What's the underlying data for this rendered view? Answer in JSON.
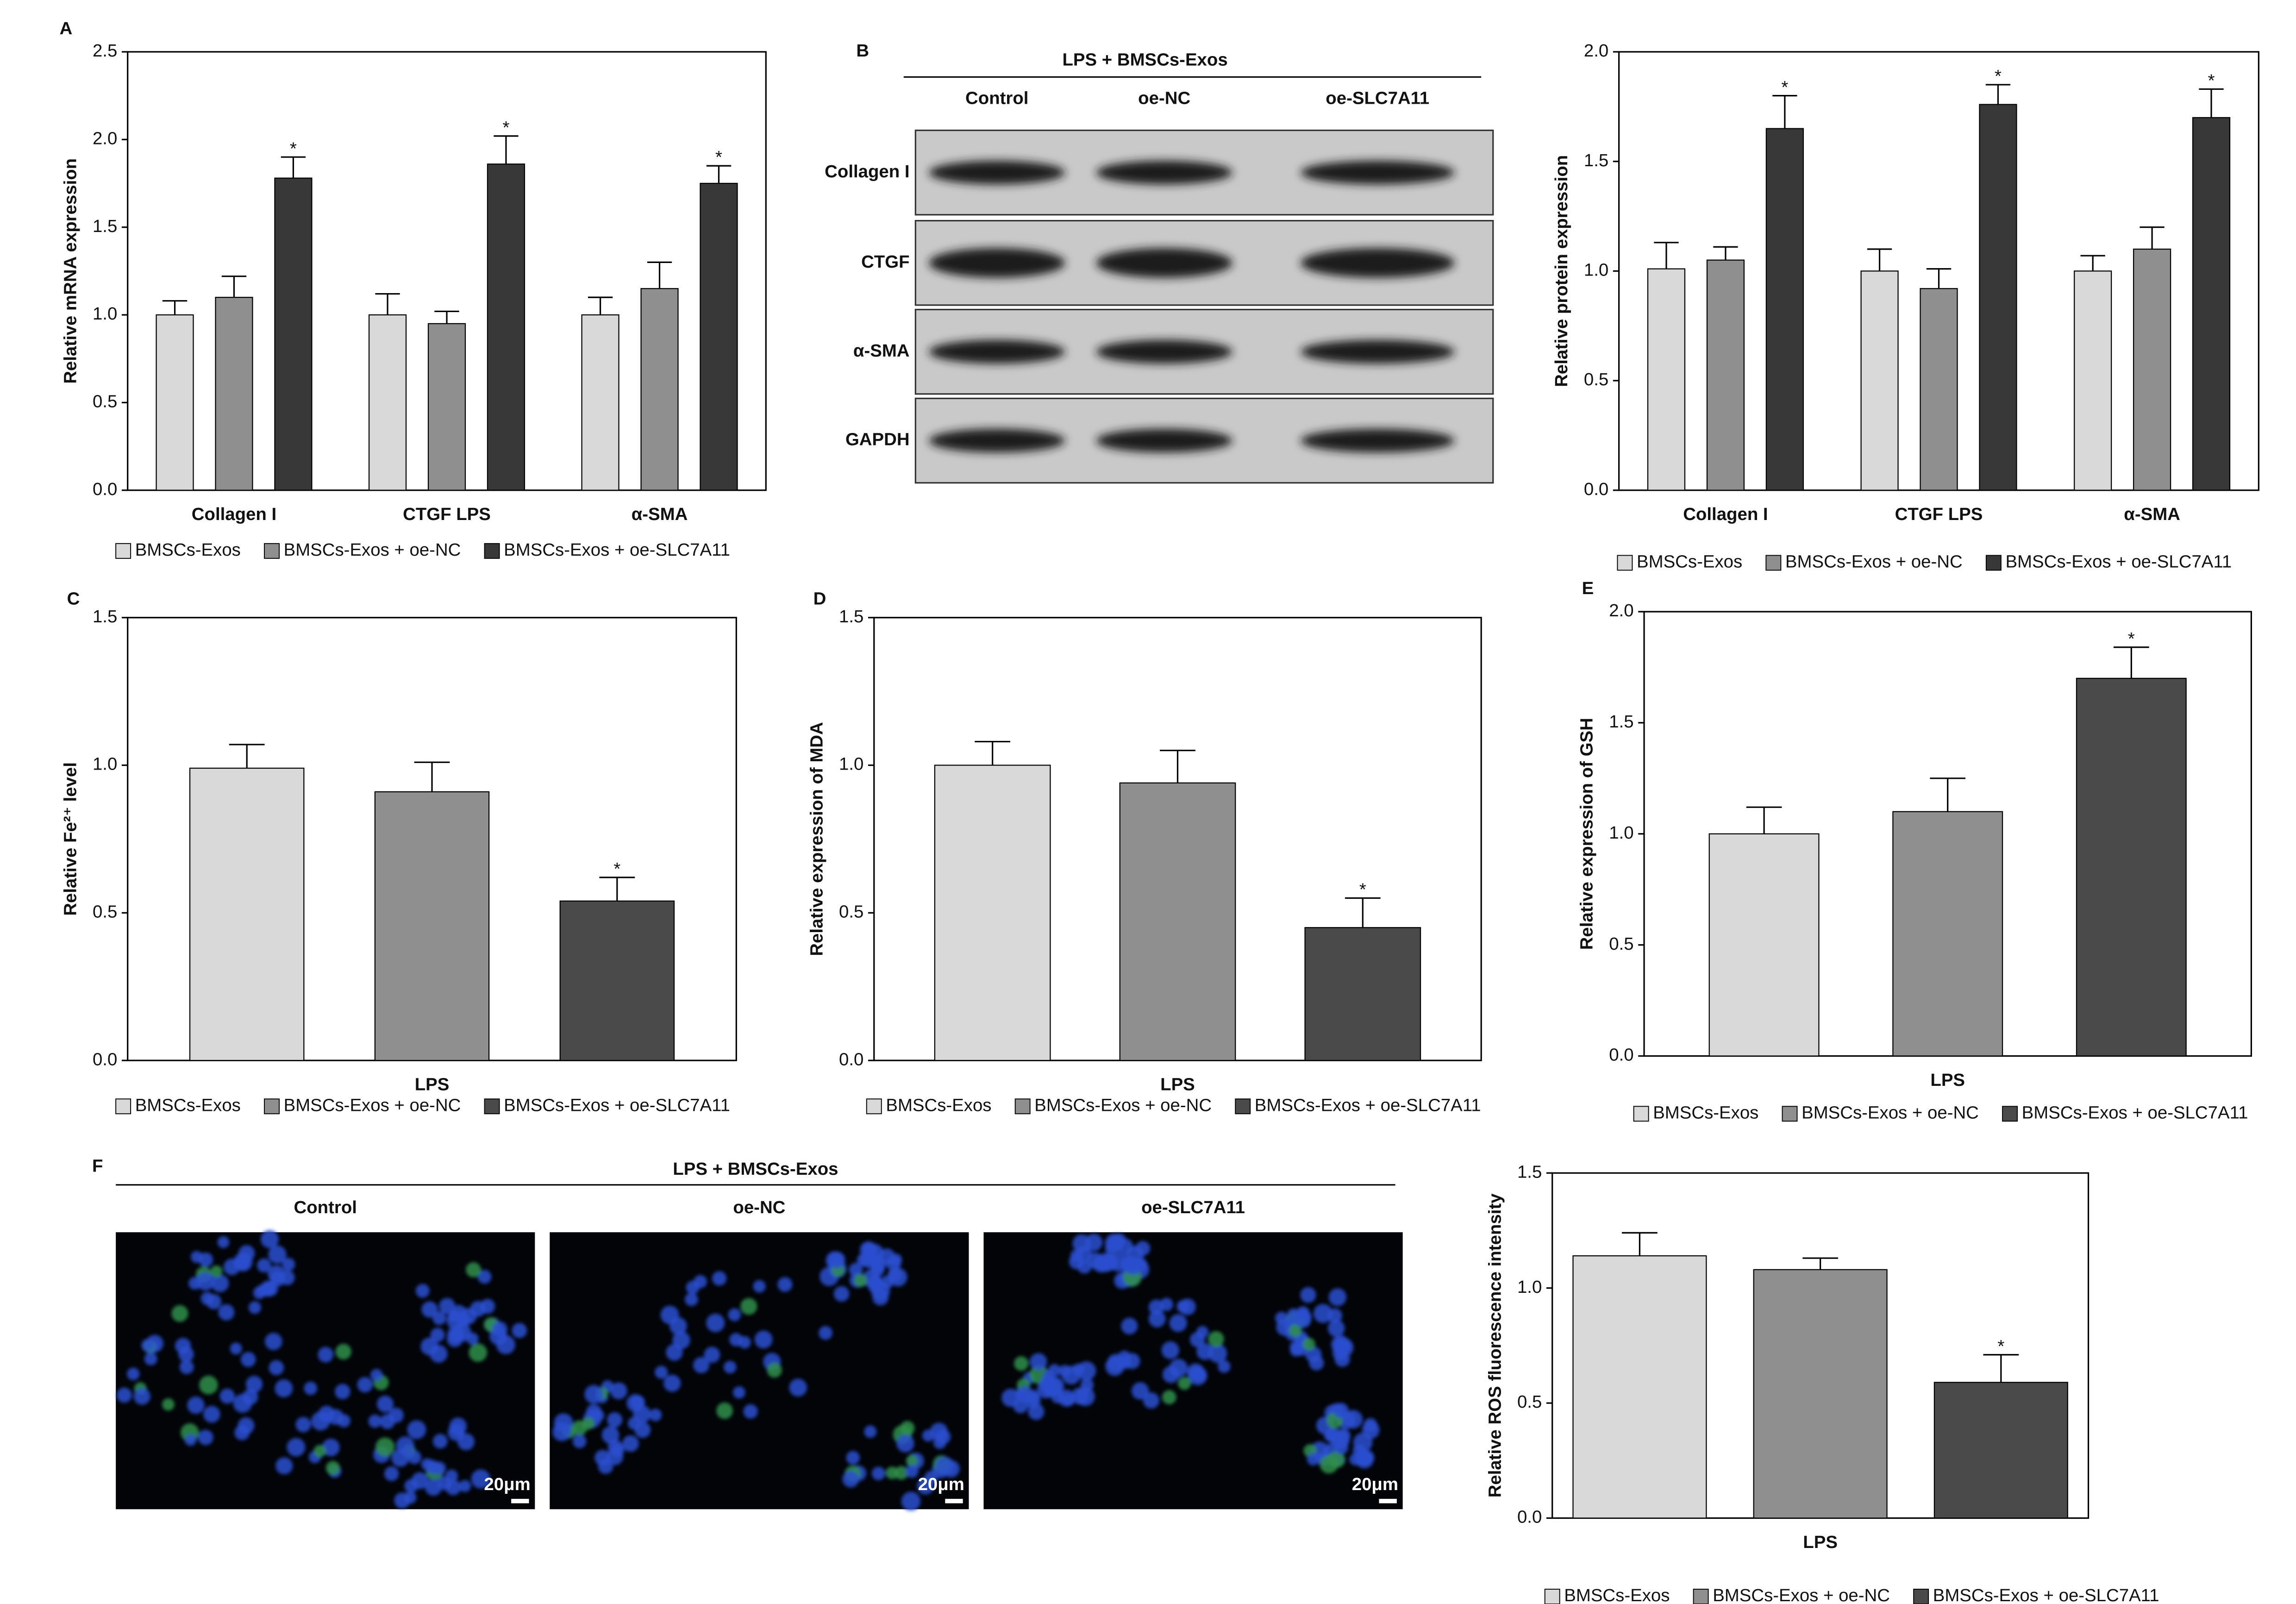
{
  "chart_data": [
    {
      "type": "bar",
      "panel": "A",
      "ylabel": "Relative mRNA expression",
      "categories": [
        "Collagen I",
        "CTGF LPS",
        "α-SMA"
      ],
      "series": [
        {
          "name": "BMSCs-Exos",
          "color": "#d9d9d9",
          "values": [
            1.0,
            1.0,
            1.0
          ],
          "errors": [
            0.08,
            0.12,
            0.1
          ]
        },
        {
          "name": "BMSCs-Exos + oe-NC",
          "color": "#8f8f8f",
          "values": [
            1.1,
            0.95,
            1.15
          ],
          "errors": [
            0.12,
            0.07,
            0.15
          ]
        },
        {
          "name": "BMSCs-Exos + oe-SLC7A11",
          "color": "#383838",
          "values": [
            1.78,
            1.86,
            1.75
          ],
          "errors": [
            0.12,
            0.16,
            0.1
          ],
          "annotations": [
            "*",
            "*",
            "*"
          ]
        }
      ],
      "ylim": [
        0,
        2.5
      ],
      "yticks": [
        {
          "value": 0,
          "label": "0.0"
        },
        0.5,
        {
          "value": 1,
          "label": "1.0"
        },
        1.5,
        {
          "value": 2,
          "label": "2.0"
        },
        2.5
      ]
    },
    {
      "type": "blot",
      "panel": "B",
      "header": "LPS + BMSCs-Exos",
      "columns": [
        "Control",
        "oe-NC",
        "oe-SLC7A11"
      ],
      "rows": [
        "Collagen I",
        "CTGF",
        "α-SMA",
        "GAPDH"
      ]
    },
    {
      "type": "bar",
      "ylabel": "Relative protein expression",
      "categories": [
        "Collagen I",
        "CTGF LPS",
        "α-SMA"
      ],
      "series": [
        {
          "name": "BMSCs-Exos",
          "color": "#d9d9d9",
          "values": [
            1.01,
            1.0,
            1.0
          ],
          "errors": [
            0.12,
            0.1,
            0.07
          ]
        },
        {
          "name": "BMSCs-Exos + oe-NC",
          "color": "#8f8f8f",
          "values": [
            1.05,
            0.92,
            1.1
          ],
          "errors": [
            0.06,
            0.09,
            0.1
          ]
        },
        {
          "name": "BMSCs-Exos + oe-SLC7A11",
          "color": "#383838",
          "values": [
            1.65,
            1.76,
            1.7
          ],
          "errors": [
            0.15,
            0.09,
            0.13
          ],
          "annotations": [
            "*",
            "*",
            "*"
          ]
        }
      ],
      "ylim": [
        0,
        2
      ],
      "yticks": [
        {
          "value": 0,
          "label": "0.0"
        },
        0.5,
        {
          "value": 1,
          "label": "1.0"
        },
        1.5,
        {
          "value": 2,
          "label": "2.0"
        }
      ]
    },
    {
      "type": "bar",
      "panel": "C",
      "ylabel": "Relative Fe²⁺ level",
      "categories": [
        "LPS"
      ],
      "series": [
        {
          "name": "BMSCs-Exos",
          "color": "#d9d9d9",
          "values": [
            0.99
          ],
          "errors": [
            0.08
          ]
        },
        {
          "name": "BMSCs-Exos + oe-NC",
          "color": "#8f8f8f",
          "values": [
            0.91
          ],
          "errors": [
            0.1
          ]
        },
        {
          "name": "BMSCs-Exos + oe-SLC7A11",
          "color": "#4a4a4a",
          "values": [
            0.54
          ],
          "errors": [
            0.08
          ],
          "annotations": [
            "*"
          ]
        }
      ],
      "ylim": [
        0,
        1.5
      ],
      "yticks": [
        {
          "value": 0,
          "label": "0.0"
        },
        0.5,
        {
          "value": 1,
          "label": "1.0"
        },
        1.5
      ]
    },
    {
      "type": "bar",
      "panel": "D",
      "ylabel": "Relative expression of MDA",
      "categories": [
        "LPS"
      ],
      "series": [
        {
          "name": "BMSCs-Exos",
          "color": "#d9d9d9",
          "values": [
            1.0
          ],
          "errors": [
            0.08
          ]
        },
        {
          "name": "BMSCs-Exos + oe-NC",
          "color": "#8f8f8f",
          "values": [
            0.94
          ],
          "errors": [
            0.11
          ]
        },
        {
          "name": "BMSCs-Exos + oe-SLC7A11",
          "color": "#4a4a4a",
          "values": [
            0.45
          ],
          "errors": [
            0.1
          ],
          "annotations": [
            "*"
          ]
        }
      ],
      "ylim": [
        0,
        1.5
      ],
      "yticks": [
        {
          "value": 0,
          "label": "0.0"
        },
        0.5,
        {
          "value": 1,
          "label": "1.0"
        },
        1.5
      ]
    },
    {
      "type": "bar",
      "panel": "E",
      "ylabel": "Relative expression of GSH",
      "categories": [
        "LPS"
      ],
      "series": [
        {
          "name": "BMSCs-Exos",
          "color": "#d9d9d9",
          "values": [
            1.0
          ],
          "errors": [
            0.12
          ]
        },
        {
          "name": "BMSCs-Exos + oe-NC",
          "color": "#8f8f8f",
          "values": [
            1.1
          ],
          "errors": [
            0.15
          ]
        },
        {
          "name": "BMSCs-Exos + oe-SLC7A11",
          "color": "#4a4a4a",
          "values": [
            1.7
          ],
          "errors": [
            0.14
          ],
          "annotations": [
            "*"
          ]
        }
      ],
      "ylim": [
        0,
        2
      ],
      "yticks": [
        {
          "value": 0,
          "label": "0.0"
        },
        0.5,
        {
          "value": 1,
          "label": "1.0"
        },
        1.5,
        {
          "value": 2,
          "label": "2.0"
        }
      ]
    },
    {
      "type": "micrograph",
      "panel": "F",
      "header": "LPS + BMSCs-Exos",
      "columns": [
        "Control",
        "oe-NC",
        "oe-SLC7A11"
      ],
      "scale_bars": [
        "20μm",
        "20μm",
        "20μm"
      ]
    },
    {
      "type": "bar",
      "ylabel": "Relative ROS fluorescence intensity",
      "categories": [
        "LPS"
      ],
      "series": [
        {
          "name": "BMSCs-Exos",
          "color": "#d9d9d9",
          "values": [
            1.14
          ],
          "errors": [
            0.1
          ]
        },
        {
          "name": "BMSCs-Exos + oe-NC",
          "color": "#8f8f8f",
          "values": [
            1.08
          ],
          "errors": [
            0.05
          ]
        },
        {
          "name": "BMSCs-Exos + oe-SLC7A11",
          "color": "#4a4a4a",
          "values": [
            0.59
          ],
          "errors": [
            0.12
          ],
          "annotations": [
            "*"
          ]
        }
      ],
      "ylim": [
        0,
        1.5
      ],
      "yticks": [
        {
          "value": 0,
          "label": "0.0"
        },
        0.5,
        {
          "value": 1,
          "label": "1.0"
        },
        1.5
      ]
    }
  ]
}
